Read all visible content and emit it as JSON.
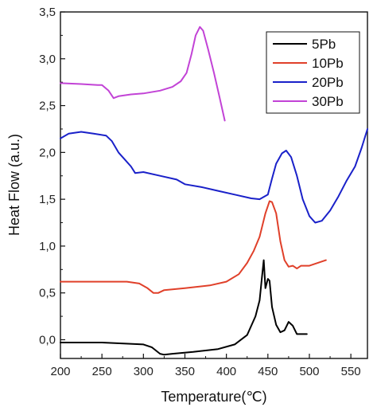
{
  "chart_data": {
    "type": "line",
    "title": "",
    "xlabel": "Temperature(℃)",
    "ylabel": "Heat Flow (a.u.)",
    "xlim": [
      200,
      570
    ],
    "ylim": [
      -0.2,
      3.5
    ],
    "x_ticks": [
      "200",
      "250",
      "300",
      "350",
      "400",
      "450",
      "500",
      "550"
    ],
    "y_ticks": [
      "0,0",
      "0,5",
      "1,0",
      "1,5",
      "2,0",
      "2,5",
      "3,0",
      "3,5"
    ],
    "grid": false,
    "legend_position": "top-right",
    "series": [
      {
        "name": "5Pb",
        "color": "#000000",
        "points": [
          [
            200,
            -0.03
          ],
          [
            250,
            -0.03
          ],
          [
            300,
            -0.05
          ],
          [
            310,
            -0.08
          ],
          [
            320,
            -0.15
          ],
          [
            325,
            -0.16
          ],
          [
            335,
            -0.15
          ],
          [
            360,
            -0.13
          ],
          [
            390,
            -0.1
          ],
          [
            410,
            -0.05
          ],
          [
            425,
            0.05
          ],
          [
            435,
            0.25
          ],
          [
            440,
            0.42
          ],
          [
            443,
            0.68
          ],
          [
            445,
            0.85
          ],
          [
            447,
            0.55
          ],
          [
            450,
            0.65
          ],
          [
            452,
            0.63
          ],
          [
            455,
            0.35
          ],
          [
            460,
            0.16
          ],
          [
            465,
            0.08
          ],
          [
            470,
            0.1
          ],
          [
            475,
            0.19
          ],
          [
            480,
            0.15
          ],
          [
            485,
            0.06
          ],
          [
            490,
            0.06
          ],
          [
            497,
            0.06
          ]
        ]
      },
      {
        "name": "10Pb",
        "color": "#e0402a",
        "points": [
          [
            200,
            0.62
          ],
          [
            280,
            0.62
          ],
          [
            295,
            0.6
          ],
          [
            305,
            0.55
          ],
          [
            312,
            0.5
          ],
          [
            318,
            0.5
          ],
          [
            325,
            0.53
          ],
          [
            350,
            0.55
          ],
          [
            380,
            0.58
          ],
          [
            400,
            0.62
          ],
          [
            415,
            0.7
          ],
          [
            425,
            0.82
          ],
          [
            433,
            0.95
          ],
          [
            440,
            1.1
          ],
          [
            447,
            1.35
          ],
          [
            452,
            1.48
          ],
          [
            455,
            1.47
          ],
          [
            460,
            1.35
          ],
          [
            465,
            1.05
          ],
          [
            470,
            0.85
          ],
          [
            475,
            0.78
          ],
          [
            480,
            0.79
          ],
          [
            485,
            0.76
          ],
          [
            490,
            0.79
          ],
          [
            500,
            0.79
          ],
          [
            510,
            0.82
          ],
          [
            520,
            0.85
          ]
        ]
      },
      {
        "name": "20Pb",
        "color": "#1a21c9",
        "points": [
          [
            200,
            2.15
          ],
          [
            210,
            2.2
          ],
          [
            225,
            2.22
          ],
          [
            240,
            2.2
          ],
          [
            255,
            2.18
          ],
          [
            262,
            2.12
          ],
          [
            270,
            2.0
          ],
          [
            278,
            1.92
          ],
          [
            285,
            1.85
          ],
          [
            290,
            1.78
          ],
          [
            300,
            1.79
          ],
          [
            320,
            1.75
          ],
          [
            340,
            1.71
          ],
          [
            350,
            1.66
          ],
          [
            370,
            1.63
          ],
          [
            390,
            1.59
          ],
          [
            410,
            1.55
          ],
          [
            430,
            1.51
          ],
          [
            440,
            1.5
          ],
          [
            450,
            1.55
          ],
          [
            455,
            1.72
          ],
          [
            460,
            1.88
          ],
          [
            467,
            1.99
          ],
          [
            472,
            2.02
          ],
          [
            478,
            1.95
          ],
          [
            485,
            1.75
          ],
          [
            492,
            1.5
          ],
          [
            500,
            1.32
          ],
          [
            507,
            1.25
          ],
          [
            515,
            1.27
          ],
          [
            525,
            1.38
          ],
          [
            535,
            1.53
          ],
          [
            545,
            1.7
          ],
          [
            555,
            1.85
          ],
          [
            563,
            2.05
          ],
          [
            570,
            2.25
          ]
        ]
      },
      {
        "name": "30Pb",
        "color": "#c243d6",
        "points": [
          [
            200,
            2.74
          ],
          [
            225,
            2.73
          ],
          [
            245,
            2.72
          ],
          [
            250,
            2.72
          ],
          [
            258,
            2.66
          ],
          [
            264,
            2.58
          ],
          [
            270,
            2.6
          ],
          [
            285,
            2.62
          ],
          [
            300,
            2.63
          ],
          [
            320,
            2.66
          ],
          [
            335,
            2.7
          ],
          [
            345,
            2.76
          ],
          [
            352,
            2.85
          ],
          [
            358,
            3.05
          ],
          [
            363,
            3.25
          ],
          [
            368,
            3.34
          ],
          [
            372,
            3.3
          ],
          [
            378,
            3.1
          ],
          [
            385,
            2.85
          ],
          [
            392,
            2.58
          ],
          [
            398,
            2.34
          ]
        ]
      }
    ]
  }
}
